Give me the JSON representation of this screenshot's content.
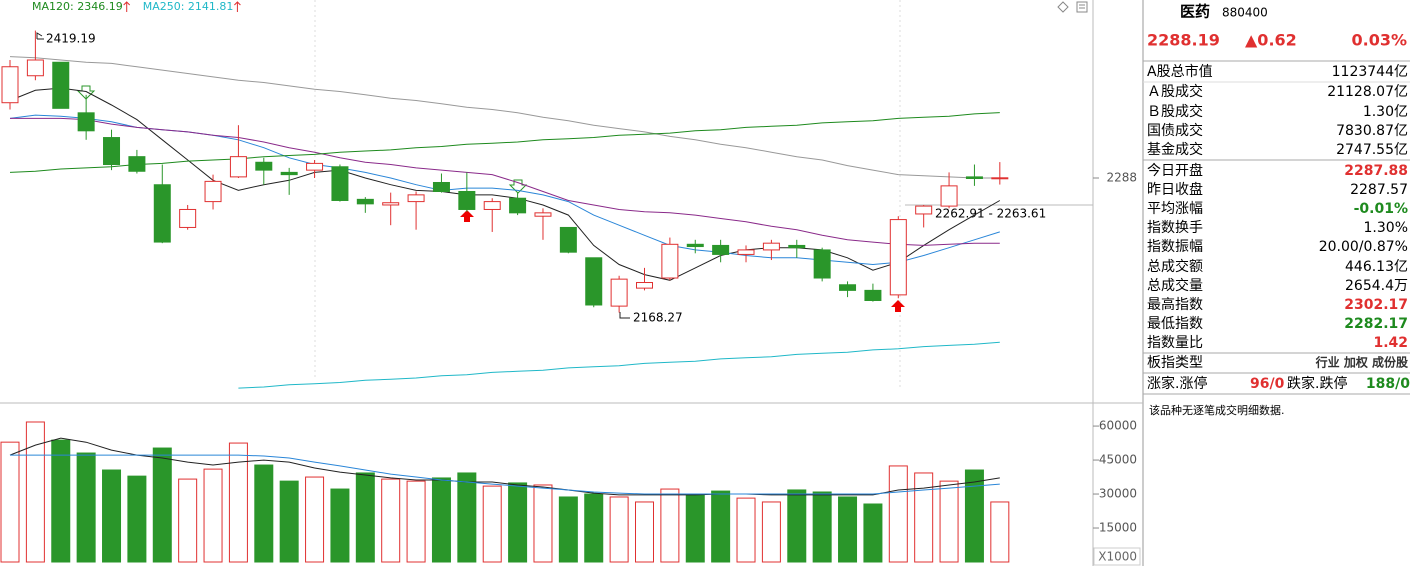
{
  "chart_data": [
    {
      "type": "candlestick",
      "categories": [
        null,
        null,
        null,
        null,
        null,
        null,
        null,
        null,
        null,
        null,
        null,
        null,
        null,
        null,
        null,
        null,
        null,
        null,
        null,
        null,
        null,
        null,
        null,
        null,
        null,
        null,
        null,
        null,
        null,
        null,
        null,
        null,
        null,
        null,
        null,
        null,
        null,
        null,
        null,
        null
      ],
      "open": [
        2355,
        2379,
        2391,
        2346,
        2324,
        2307,
        2282,
        2244,
        2267,
        2289,
        2302,
        2293,
        2295,
        2298,
        2269,
        2264,
        2267,
        2284,
        2276,
        2260,
        2270,
        2254,
        2244,
        2217,
        2174,
        2190,
        2199,
        2229,
        2228,
        2220,
        2224,
        2228,
        2224,
        2193,
        2188,
        2184,
        2256,
        2263,
        2289,
        2287.88
      ],
      "high": [
        2393,
        2419.19,
        2391,
        2362,
        2331,
        2313,
        2300,
        2264,
        2291,
        2335,
        2306,
        2297,
        2304,
        2300,
        2271,
        2275,
        2276,
        2292,
        2293,
        2270,
        2275,
        2261,
        2244,
        2217,
        2201,
        2208,
        2235,
        2233,
        2233,
        2228,
        2233,
        2233,
        2226,
        2196,
        2194,
        2254,
        2264,
        2293,
        2300,
        2302.17
      ],
      "low": [
        2349,
        2375,
        2350,
        2322,
        2295,
        2292,
        2230,
        2242,
        2260,
        2288,
        2282,
        2273,
        2288,
        2267,
        2257,
        2246,
        2242,
        2275,
        2258,
        2240,
        2255,
        2233,
        2221,
        2173,
        2168.27,
        2188,
        2197,
        2221,
        2213,
        2213,
        2215,
        2217,
        2196,
        2182,
        2178,
        2181,
        2244,
        2261,
        2281,
        2282.17
      ],
      "close": [
        2387,
        2393,
        2350,
        2330,
        2300,
        2294,
        2231,
        2260,
        2285,
        2307,
        2295,
        2291,
        2301,
        2268,
        2265,
        2266,
        2273,
        2276,
        2260,
        2267,
        2257,
        2257,
        2222,
        2175,
        2198,
        2195,
        2229,
        2227,
        2220,
        2224,
        2230,
        2226,
        2199,
        2188,
        2179,
        2251,
        2263,
        2281,
        2287.57,
        2288.19
      ],
      "up_color": "#e03030",
      "down_color": "#2a962a",
      "series": [
        {
          "color": "#222222",
          "values": [
            2357,
            2366,
            2368,
            2365,
            2353,
            2340,
            2322,
            2304,
            2286,
            2277,
            2282,
            2286,
            2293,
            2295,
            2288,
            2282,
            2277,
            2276,
            2273,
            2273,
            2270,
            2264,
            2255,
            2228,
            2211,
            2202,
            2197,
            2208,
            2219,
            2224,
            2226,
            2226,
            2224,
            2217,
            2206,
            2213,
            2228,
            2242,
            2255,
            2268
          ]
        },
        {
          "color": "#2a86d8",
          "values": [
            2341,
            2344,
            2343,
            2341,
            2338,
            2333,
            2331,
            2329,
            2326,
            2322,
            2315,
            2306,
            2300,
            2297,
            2293,
            2288,
            2282,
            2277,
            2279,
            2279,
            2277,
            2273,
            2267,
            2255,
            2246,
            2237,
            2228,
            2224,
            2222,
            2219,
            2217,
            2217,
            2215,
            2213,
            2211,
            2213,
            2219,
            2226,
            2233,
            2240
          ]
        },
        {
          "color": "#8a2a8a",
          "values": [
            2341,
            2341,
            2341,
            2340,
            2336,
            2333,
            2331,
            2329,
            2326,
            2324,
            2320,
            2315,
            2311,
            2306,
            2302,
            2300,
            2297,
            2295,
            2293,
            2291,
            2284,
            2276,
            2268,
            2264,
            2260,
            2258,
            2257,
            2255,
            2252,
            2249,
            2245,
            2242,
            2237,
            2233,
            2231,
            2229,
            2228,
            2229,
            2230,
            2230
          ]
        },
        {
          "color": "#999999",
          "values": [
            2396,
            2395,
            2393,
            2391,
            2390,
            2387,
            2384,
            2381,
            2378,
            2375,
            2373,
            2370,
            2367,
            2365,
            2362,
            2359,
            2357,
            2354,
            2351,
            2349,
            2346,
            2342,
            2339,
            2335,
            2332,
            2329,
            2325,
            2322,
            2318,
            2315,
            2311,
            2307,
            2304,
            2299,
            2295,
            2291,
            2290,
            2289,
            2288,
            2288
          ]
        },
        {
          "color": "#1e8a1e",
          "values": [
            2293,
            2294,
            2296,
            2297,
            2298,
            2300,
            2301,
            2303,
            2304,
            2305,
            2307,
            2308,
            2309,
            2311,
            2312,
            2313,
            2315,
            2316,
            2318,
            2319,
            2320,
            2322,
            2323,
            2324,
            2326,
            2327,
            2328,
            2330,
            2331,
            2333,
            2334,
            2335,
            2337,
            2338,
            2339,
            2341,
            2342,
            2343,
            2345,
            2346.19
          ]
        },
        {
          "color": "#20b8c8",
          "values": [
            null,
            null,
            null,
            null,
            null,
            null,
            null,
            null,
            null,
            2101,
            2102,
            2104,
            2105,
            2106,
            2108,
            2109,
            2110,
            2112,
            2113,
            2115,
            2116,
            2117,
            2119,
            2120,
            2121,
            2123,
            2124,
            2125,
            2127,
            2128,
            2129,
            2131,
            2132,
            2133,
            2135,
            2136,
            2138,
            2139,
            2140,
            2141.81
          ]
        }
      ],
      "legend": [
        {
          "label": "MA120: 2346.19",
          "color": "#1e8a1e"
        },
        {
          "label": "MA250: 2141.81",
          "color": "#20b8c8"
        }
      ],
      "annotations": [
        "2419.19",
        "2168.27",
        "2262.91 - 2263.61"
      ],
      "ylim": [
        2094.9,
        2446.4
      ],
      "yticks": [
        2288
      ]
    },
    {
      "type": "bar",
      "categories": [
        null,
        null,
        null,
        null,
        null,
        null,
        null,
        null,
        null,
        null,
        null,
        null,
        null,
        null,
        null,
        null,
        null,
        null,
        null,
        null,
        null,
        null,
        null,
        null,
        null,
        null,
        null,
        null,
        null,
        null,
        null,
        null,
        null,
        null,
        null,
        null,
        null,
        null,
        null,
        null
      ],
      "values": [
        52900,
        61800,
        53800,
        48100,
        40600,
        37900,
        50300,
        36600,
        41000,
        52500,
        42800,
        35700,
        37500,
        32200,
        39300,
        36600,
        35700,
        37100,
        39300,
        33500,
        34900,
        34000,
        28700,
        30000,
        28700,
        26500,
        32200,
        29600,
        31300,
        28200,
        26500,
        31800,
        30900,
        28700,
        25600,
        42400,
        39300,
        35700,
        40600,
        26500
      ],
      "series": [
        {
          "color": "#222222",
          "values": [
            47200,
            51600,
            54700,
            52900,
            49400,
            47200,
            45900,
            44100,
            42800,
            44100,
            45000,
            44100,
            41500,
            39700,
            38400,
            37100,
            36200,
            36200,
            35300,
            35300,
            34000,
            33100,
            31800,
            30400,
            29600,
            29600,
            29600,
            29600,
            30000,
            30000,
            29600,
            29600,
            29600,
            29600,
            29600,
            31800,
            32600,
            34000,
            35300,
            37100
          ]
        },
        {
          "color": "#2a86d8",
          "values": [
            47200,
            47200,
            47200,
            47200,
            47200,
            47200,
            47200,
            47200,
            47200,
            47200,
            46800,
            45900,
            44100,
            42400,
            40600,
            38800,
            37500,
            36200,
            35300,
            34400,
            33500,
            32600,
            31800,
            30900,
            30400,
            30000,
            30000,
            30000,
            30000,
            30000,
            30000,
            30000,
            30000,
            30000,
            30000,
            30900,
            31800,
            32600,
            33500,
            34400
          ]
        }
      ],
      "unit_label": "X1000",
      "ylim": [
        0,
        69300
      ],
      "yticks": [
        15000,
        30000,
        45000,
        60000
      ]
    }
  ],
  "panel": {
    "name": "医药",
    "code": "880400",
    "price": "2288.19",
    "change": "▲0.62",
    "pct": "0.03%",
    "rows": [
      {
        "label": "A股总市值",
        "value": "1123744亿",
        "color": "#000000"
      },
      {
        "label": "Ａ股成交",
        "value": "21128.07亿",
        "color": "#000000"
      },
      {
        "label": "Ｂ股成交",
        "value": "1.30亿",
        "color": "#000000"
      },
      {
        "label": "国债成交",
        "value": "7830.87亿",
        "color": "#000000"
      },
      {
        "label": "基金成交",
        "value": "2747.55亿",
        "color": "#000000"
      },
      {
        "label": "今日开盘",
        "value": "2287.88",
        "color": "#e03030"
      },
      {
        "label": "昨日收盘",
        "value": "2287.57",
        "color": "#000000"
      },
      {
        "label": "平均涨幅",
        "value": "-0.01%",
        "color": "#1e8a1e"
      },
      {
        "label": "指数换手",
        "value": "1.30%",
        "color": "#000000"
      },
      {
        "label": "指数振幅",
        "value": "20.00/0.87%",
        "color": "#000000"
      },
      {
        "label": "总成交额",
        "value": "446.13亿",
        "color": "#000000"
      },
      {
        "label": "总成交量",
        "value": "2654.4万",
        "color": "#000000"
      },
      {
        "label": "最高指数",
        "value": "2302.17",
        "color": "#e03030"
      },
      {
        "label": "最低指数",
        "value": "2282.17",
        "color": "#1e8a1e"
      },
      {
        "label": "指数量比",
        "value": "1.42",
        "color": "#e03030"
      },
      {
        "label": "板指类型",
        "value": "行业 加权 成份股",
        "color": "#333333"
      }
    ],
    "rise_label": "涨家.涨停",
    "rise_value": "96/0",
    "fall_label": "跌家.跌停",
    "fall_value": "188/0",
    "note": "该品种无逐笔成交明细数据."
  }
}
